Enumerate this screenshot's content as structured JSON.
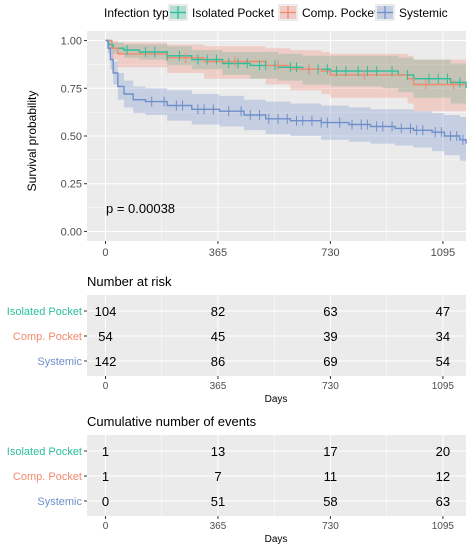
{
  "colors": {
    "panel_bg": "#EBEBEB",
    "grid": "#FFFFFF",
    "axis_text": "#4D4D4D",
    "isolated": "#2BBE9A",
    "comp": "#F4896F",
    "systemic": "#6F8FCB"
  },
  "legend": {
    "title": "Infection type",
    "items": [
      "Isolated Pocket",
      "Comp. Pocket",
      "Systemic"
    ]
  },
  "chart_data": [
    {
      "type": "line",
      "subtype": "kaplan-meier",
      "title": "",
      "xlabel": "",
      "ylabel": "Survival probability",
      "xlim": [
        -60,
        1170
      ],
      "ylim": [
        -0.05,
        1.05
      ],
      "x_ticks": [
        0,
        365,
        730,
        1095
      ],
      "x_tick_labels": [
        "0",
        "365",
        "730",
        "1095"
      ],
      "y_ticks": [
        0,
        0.25,
        0.5,
        0.75,
        1.0
      ],
      "y_tick_labels": [
        "0.00",
        "0.25",
        "0.50",
        "0.75",
        "1.00"
      ],
      "grid": true,
      "legend_position": "top",
      "annotation": "p = 0.00038",
      "series": [
        {
          "name": "Isolated Pocket",
          "steps": [
            [
              0,
              1.0
            ],
            [
              10,
              0.98
            ],
            [
              25,
              0.96
            ],
            [
              60,
              0.95
            ],
            [
              110,
              0.94
            ],
            [
              200,
              0.92
            ],
            [
              280,
              0.9
            ],
            [
              380,
              0.88
            ],
            [
              470,
              0.87
            ],
            [
              560,
              0.86
            ],
            [
              640,
              0.85
            ],
            [
              730,
              0.84
            ],
            [
              900,
              0.84
            ],
            [
              950,
              0.82
            ],
            [
              1000,
              0.8
            ],
            [
              1120,
              0.78
            ],
            [
              1170,
              0.75
            ]
          ],
          "ci_upper": [
            [
              0,
              1.0
            ],
            [
              10,
              1.0
            ],
            [
              25,
              0.99
            ],
            [
              60,
              0.98
            ],
            [
              110,
              0.98
            ],
            [
              200,
              0.97
            ],
            [
              280,
              0.95
            ],
            [
              380,
              0.94
            ],
            [
              470,
              0.94
            ],
            [
              560,
              0.93
            ],
            [
              640,
              0.92
            ],
            [
              730,
              0.92
            ],
            [
              900,
              0.92
            ],
            [
              950,
              0.91
            ],
            [
              1000,
              0.9
            ],
            [
              1120,
              0.88
            ],
            [
              1170,
              0.86
            ]
          ],
          "ci_lower": [
            [
              0,
              1.0
            ],
            [
              10,
              0.95
            ],
            [
              25,
              0.93
            ],
            [
              60,
              0.91
            ],
            [
              110,
              0.9
            ],
            [
              200,
              0.87
            ],
            [
              280,
              0.85
            ],
            [
              380,
              0.82
            ],
            [
              470,
              0.8
            ],
            [
              560,
              0.79
            ],
            [
              640,
              0.77
            ],
            [
              730,
              0.76
            ],
            [
              900,
              0.75
            ],
            [
              950,
              0.73
            ],
            [
              1000,
              0.7
            ],
            [
              1120,
              0.67
            ],
            [
              1170,
              0.63
            ]
          ],
          "censor_x": [
            70,
            130,
            160,
            200,
            240,
            300,
            330,
            360,
            400,
            430,
            460,
            500,
            520,
            550,
            600,
            620,
            660,
            690,
            720,
            750,
            780,
            820,
            850,
            880,
            930,
            980,
            1050,
            1080,
            1110,
            1150
          ]
        },
        {
          "name": "Comp. Pocket",
          "steps": [
            [
              0,
              1.0
            ],
            [
              20,
              0.96
            ],
            [
              40,
              0.93
            ],
            [
              200,
              0.91
            ],
            [
              320,
              0.89
            ],
            [
              520,
              0.87
            ],
            [
              600,
              0.85
            ],
            [
              700,
              0.84
            ],
            [
              730,
              0.82
            ],
            [
              980,
              0.8
            ],
            [
              1000,
              0.77
            ],
            [
              1170,
              0.77
            ]
          ],
          "ci_upper": [
            [
              0,
              1.0
            ],
            [
              20,
              1.0
            ],
            [
              40,
              0.99
            ],
            [
              200,
              0.98
            ],
            [
              320,
              0.97
            ],
            [
              520,
              0.96
            ],
            [
              600,
              0.95
            ],
            [
              700,
              0.94
            ],
            [
              730,
              0.93
            ],
            [
              980,
              0.92
            ],
            [
              1000,
              0.9
            ],
            [
              1170,
              0.9
            ]
          ],
          "ci_lower": [
            [
              0,
              1.0
            ],
            [
              20,
              0.9
            ],
            [
              40,
              0.86
            ],
            [
              200,
              0.83
            ],
            [
              320,
              0.8
            ],
            [
              520,
              0.77
            ],
            [
              600,
              0.74
            ],
            [
              700,
              0.72
            ],
            [
              730,
              0.7
            ],
            [
              980,
              0.67
            ],
            [
              1000,
              0.63
            ],
            [
              1170,
              0.62
            ]
          ],
          "censor_x": [
            260,
            420,
            560,
            660,
            840,
            1040,
            1130
          ]
        },
        {
          "name": "Systemic",
          "steps": [
            [
              0,
              1.0
            ],
            [
              8,
              0.96
            ],
            [
              16,
              0.9
            ],
            [
              25,
              0.83
            ],
            [
              40,
              0.76
            ],
            [
              60,
              0.72
            ],
            [
              90,
              0.69
            ],
            [
              130,
              0.68
            ],
            [
              200,
              0.66
            ],
            [
              280,
              0.64
            ],
            [
              370,
              0.63
            ],
            [
              450,
              0.61
            ],
            [
              520,
              0.59
            ],
            [
              600,
              0.58
            ],
            [
              700,
              0.57
            ],
            [
              790,
              0.56
            ],
            [
              860,
              0.55
            ],
            [
              940,
              0.54
            ],
            [
              1000,
              0.53
            ],
            [
              1060,
              0.52
            ],
            [
              1100,
              0.5
            ],
            [
              1150,
              0.48
            ],
            [
              1170,
              0.46
            ]
          ],
          "ci_upper": [
            [
              0,
              1.0
            ],
            [
              8,
              0.99
            ],
            [
              16,
              0.95
            ],
            [
              25,
              0.89
            ],
            [
              40,
              0.83
            ],
            [
              60,
              0.79
            ],
            [
              90,
              0.76
            ],
            [
              130,
              0.75
            ],
            [
              200,
              0.74
            ],
            [
              280,
              0.72
            ],
            [
              370,
              0.71
            ],
            [
              450,
              0.69
            ],
            [
              520,
              0.68
            ],
            [
              600,
              0.67
            ],
            [
              700,
              0.66
            ],
            [
              790,
              0.65
            ],
            [
              860,
              0.64
            ],
            [
              940,
              0.64
            ],
            [
              1000,
              0.63
            ],
            [
              1060,
              0.62
            ],
            [
              1100,
              0.61
            ],
            [
              1150,
              0.6
            ],
            [
              1170,
              0.58
            ]
          ],
          "ci_lower": [
            [
              0,
              1.0
            ],
            [
              8,
              0.93
            ],
            [
              16,
              0.85
            ],
            [
              25,
              0.77
            ],
            [
              40,
              0.69
            ],
            [
              60,
              0.65
            ],
            [
              90,
              0.62
            ],
            [
              130,
              0.61
            ],
            [
              200,
              0.58
            ],
            [
              280,
              0.56
            ],
            [
              370,
              0.55
            ],
            [
              450,
              0.53
            ],
            [
              520,
              0.51
            ],
            [
              600,
              0.5
            ],
            [
              700,
              0.48
            ],
            [
              790,
              0.47
            ],
            [
              860,
              0.46
            ],
            [
              940,
              0.45
            ],
            [
              1000,
              0.44
            ],
            [
              1060,
              0.42
            ],
            [
              1100,
              0.4
            ],
            [
              1150,
              0.37
            ],
            [
              1170,
              0.35
            ]
          ],
          "censor_x": [
            150,
            190,
            230,
            250,
            300,
            320,
            350,
            400,
            440,
            470,
            500,
            530,
            560,
            590,
            620,
            640,
            670,
            700,
            720,
            760,
            800,
            830,
            850,
            880,
            900,
            930,
            960,
            990,
            1010,
            1030,
            1070,
            1090,
            1120,
            1140,
            1160
          ]
        }
      ]
    },
    {
      "type": "table",
      "title": "Number at risk",
      "xlabel": "Days",
      "x_ticks": [
        0,
        365,
        730,
        1095
      ],
      "x_tick_labels": [
        "0",
        "365",
        "730",
        "1095"
      ],
      "rows": [
        {
          "name": "Isolated Pocket",
          "values": [
            "104",
            "82",
            "63",
            "47"
          ]
        },
        {
          "name": "Comp. Pocket",
          "values": [
            "54",
            "45",
            "39",
            "34"
          ]
        },
        {
          "name": "Systemic",
          "values": [
            "142",
            "86",
            "69",
            "54"
          ]
        }
      ]
    },
    {
      "type": "table",
      "title": "Cumulative number of events",
      "xlabel": "Days",
      "x_ticks": [
        0,
        365,
        730,
        1095
      ],
      "x_tick_labels": [
        "0",
        "365",
        "730",
        "1095"
      ],
      "rows": [
        {
          "name": "Isolated Pocket",
          "values": [
            "1",
            "13",
            "17",
            "20"
          ]
        },
        {
          "name": "Comp. Pocket",
          "values": [
            "1",
            "7",
            "11",
            "12"
          ]
        },
        {
          "name": "Systemic",
          "values": [
            "0",
            "51",
            "58",
            "63"
          ]
        }
      ]
    }
  ]
}
